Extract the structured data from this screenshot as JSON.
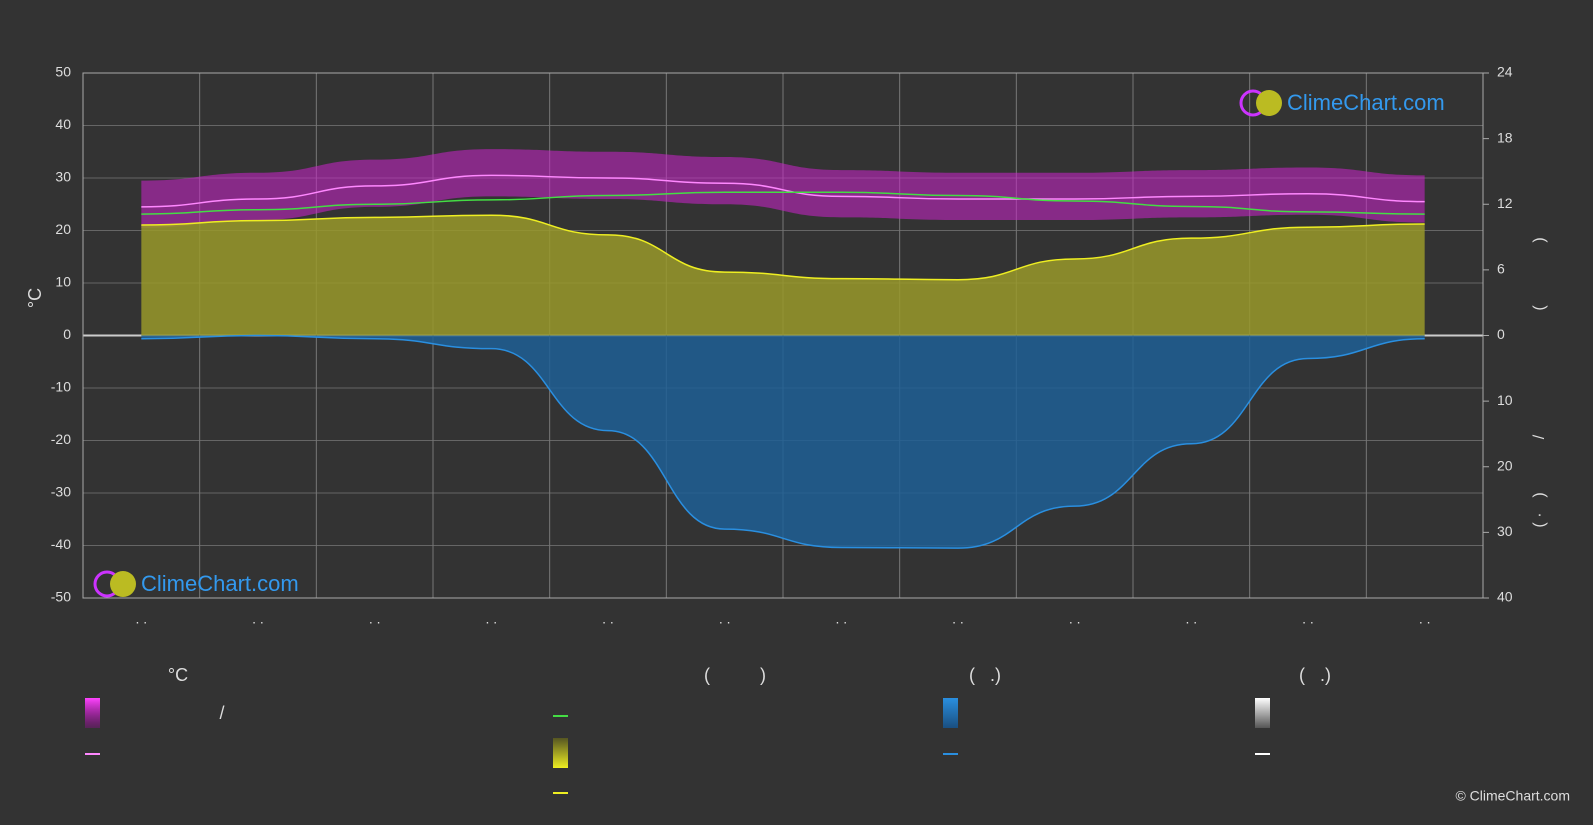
{
  "chart_data": {
    "type": "line",
    "y_label": "°C",
    "categories": [
      ". .",
      ". .",
      ". .",
      ". .",
      ". .",
      ". .",
      ". .",
      ". .",
      ". .",
      ". .",
      ". .",
      ". ."
    ],
    "ylim": [
      -50,
      50
    ],
    "yticks": [
      50,
      40,
      30,
      20,
      10,
      0,
      -10,
      -20,
      -30,
      -40,
      -50
    ],
    "y2lim": [
      0,
      24
    ],
    "y2ticks": [
      0,
      6,
      12,
      18,
      24
    ],
    "y3lim": [
      0,
      40
    ],
    "y3ticks": [
      10,
      20,
      30,
      40
    ],
    "y2_label_parts": [
      ")",
      "(",
      "/",
      ")",
      "( ·"
    ],
    "series": [
      {
        "color": "#ff88ff",
        "axis": "y",
        "values": [
          24.5,
          26,
          28.5,
          30.5,
          30,
          29,
          26.5,
          26,
          26,
          26.5,
          27,
          25.5
        ]
      },
      {
        "color": "#44dd44",
        "axis": "y2",
        "values": [
          11.1,
          11.5,
          12,
          12.4,
          12.8,
          13.1,
          13.1,
          12.8,
          12.3,
          11.8,
          11.3,
          11.1
        ]
      },
      {
        "color": "#eeee22",
        "axis": "y2",
        "values": [
          10.1,
          10.5,
          10.8,
          11,
          9.2,
          5.8,
          5.2,
          5.1,
          7,
          8.9,
          9.9,
          10.2
        ]
      },
      {
        "color": "#2a8fe0",
        "axis": "y3",
        "values": [
          0.5,
          0,
          0.5,
          2,
          14.5,
          29.5,
          32.3,
          32.4,
          26,
          16.5,
          3.5,
          0.5
        ]
      }
    ],
    "legend_headings": [
      "°C",
      "(          )",
      "(   .)",
      "(   .)"
    ],
    "legend_slash": "/",
    "watermark": "ClimeChart.com",
    "copyright": "© ClimeChart.com"
  }
}
